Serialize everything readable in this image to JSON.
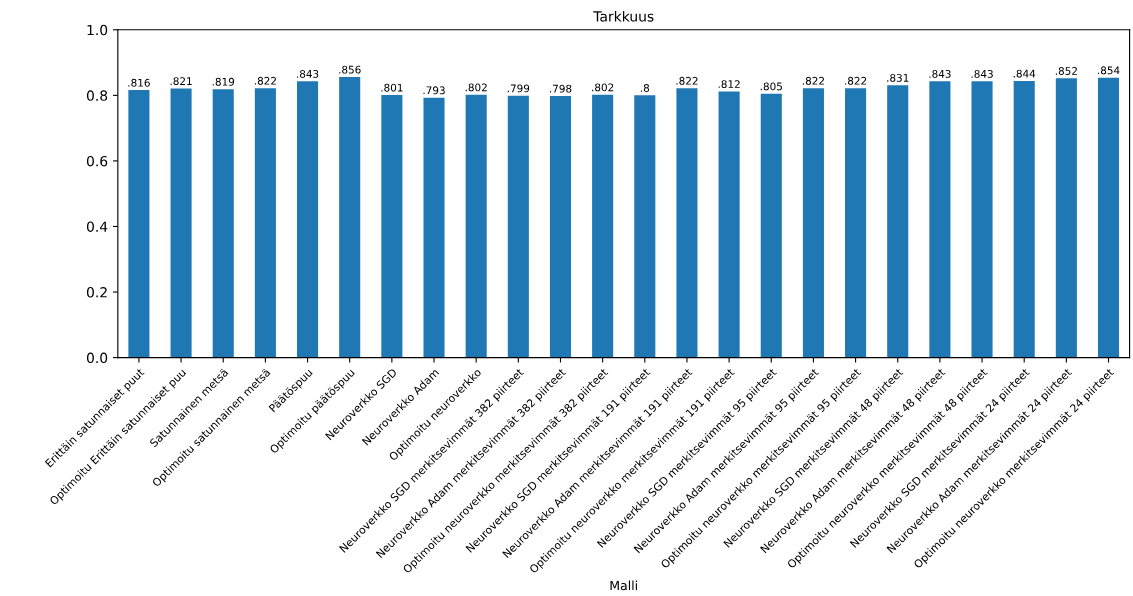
{
  "chart_data": {
    "type": "bar",
    "title": "Tarkkuus",
    "xlabel": "Malli",
    "categories": [
      "Erittäin satunnaiset puut",
      "Optimoitu Erittäin satunnaiset puu",
      "Satunnainen metsä",
      "Optimoitu satunnainen metsä",
      "Päätöspuu",
      "Optimoitu päätöspuu",
      "Neuroverkko SGD",
      "Neuroverkko Adam",
      "Optimoitu neuroverkko",
      "Neuroverkko SGD merkitsevimmät 382 piirteet",
      "Neuroverkko Adam merkitsevimmät 382 piirteet",
      "Optimoitu neuroverkko merkitsevimmät 382 piirteet",
      "Neuroverkko SGD merkitsevimmät 191 piirteet",
      "Neuroverkko Adam merkitsevimmät 191 piirteet",
      "Optimoitu neuroverkko merkitsevimmät 191 piirteet",
      "Neuroverkko SGD merkitsevimmät 95 piirteet",
      "Neuroverkko Adam merkitsevimmät 95 piirteet",
      "Optimoitu neuroverkko merkitsevimmät 95 piirteet",
      "Neuroverkko SGD merkitsevimmät 48 piirteet",
      "Neuroverkko Adam merkitsevimmät 48 piirteet",
      "Optimoitu neuroverkko merkitsevimmät 48 piirteet",
      "Neuroverkko SGD merkitsevimmät 24 piirteet",
      "Neuroverkko Adam merkitsevimmät 24 piirteet",
      "Optimoitu neuroverkko merkitsevimmät 24 piirteet"
    ],
    "values": [
      0.816,
      0.821,
      0.819,
      0.822,
      0.843,
      0.856,
      0.801,
      0.793,
      0.802,
      0.799,
      0.798,
      0.802,
      0.8,
      0.822,
      0.812,
      0.805,
      0.822,
      0.822,
      0.831,
      0.843,
      0.843,
      0.844,
      0.852,
      0.854
    ],
    "value_labels": [
      ".816",
      ".821",
      ".819",
      ".822",
      ".843",
      ".856",
      ".801",
      ".793",
      ".802",
      ".799",
      ".798",
      ".802",
      ".8",
      ".822",
      ".812",
      ".805",
      ".822",
      ".822",
      ".831",
      ".843",
      ".843",
      ".844",
      ".852",
      ".854"
    ],
    "color": "#1f77b4",
    "ylim": [
      0.0,
      1.0
    ],
    "yticks": [
      {
        "value": 0.0,
        "label": "0.0"
      },
      {
        "value": 0.2,
        "label": "0.2"
      },
      {
        "value": 0.4,
        "label": "0.4"
      },
      {
        "value": 0.6,
        "label": "0.6"
      },
      {
        "value": 0.8,
        "label": "0.8"
      },
      {
        "value": 1.0,
        "label": "1.0"
      }
    ],
    "grid": false
  }
}
